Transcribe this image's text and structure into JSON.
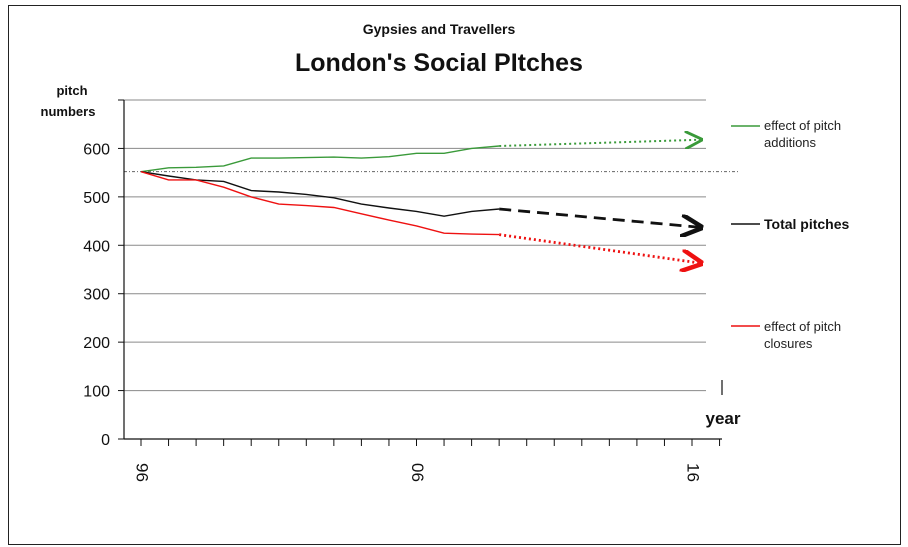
{
  "chart_data": {
    "type": "line",
    "subtitle": "Gypsies and Travellers",
    "title": "London's Social PItches",
    "ylabel_line1": "pitch",
    "ylabel_line2": "numbers",
    "xlabel": "year",
    "ylim": [
      0,
      700
    ],
    "yticks": [
      0,
      100,
      200,
      300,
      400,
      500,
      600,
      700
    ],
    "ytick_labels": [
      "0",
      "100",
      "200",
      "300",
      "400",
      "500",
      "600",
      ""
    ],
    "xlim": [
      1996,
      2017
    ],
    "xtick_years": [
      1996,
      1997,
      1998,
      1999,
      2000,
      2001,
      2002,
      2003,
      2004,
      2005,
      2006,
      2007,
      2008,
      2009,
      2010,
      2011,
      2012,
      2013,
      2014,
      2015,
      2016,
      2017
    ],
    "xtick_labels": [
      {
        "x": 1996,
        "text": "96"
      },
      {
        "x": 2006,
        "text": "06"
      },
      {
        "x": 2016,
        "text": "16"
      }
    ],
    "reference_line": 552,
    "grid": true,
    "legend_placement": "right",
    "series": [
      {
        "name": "effect of pitch additions",
        "color": "#3a9a3a",
        "x": [
          1996,
          1997,
          1998,
          1999,
          2000,
          2001,
          2002,
          2003,
          2004,
          2005,
          2006,
          2007,
          2008,
          2009
        ],
        "values": [
          552,
          560,
          561,
          564,
          580,
          580,
          581,
          582,
          580,
          583,
          590,
          590,
          600,
          605
        ],
        "projection": {
          "x": [
            2009,
            2016
          ],
          "values": [
            605,
            618
          ]
        }
      },
      {
        "name": "Total pitches",
        "color": "#111111",
        "x": [
          1996,
          1997,
          1998,
          1999,
          2000,
          2001,
          2002,
          2003,
          2004,
          2005,
          2006,
          2007,
          2008,
          2009
        ],
        "values": [
          552,
          543,
          535,
          532,
          513,
          510,
          505,
          498,
          485,
          477,
          470,
          460,
          470,
          475
        ],
        "projection": {
          "x": [
            2009,
            2016
          ],
          "values": [
            475,
            437
          ]
        }
      },
      {
        "name": "effect of pitch closures",
        "color": "#ee1111",
        "x": [
          1996,
          1997,
          1998,
          1999,
          2000,
          2001,
          2002,
          2003,
          2004,
          2005,
          2006,
          2007,
          2008,
          2009
        ],
        "values": [
          552,
          535,
          535,
          520,
          500,
          485,
          482,
          478,
          465,
          452,
          440,
          425,
          423,
          422
        ],
        "projection": {
          "x": [
            2009,
            2016
          ],
          "values": [
            422,
            363
          ]
        }
      }
    ]
  },
  "legend": {
    "additions_line1": "effect of pitch",
    "additions_line2": "additions",
    "total": "Total pitches",
    "closures_line1": "effect of pitch",
    "closures_line2": "closures"
  }
}
